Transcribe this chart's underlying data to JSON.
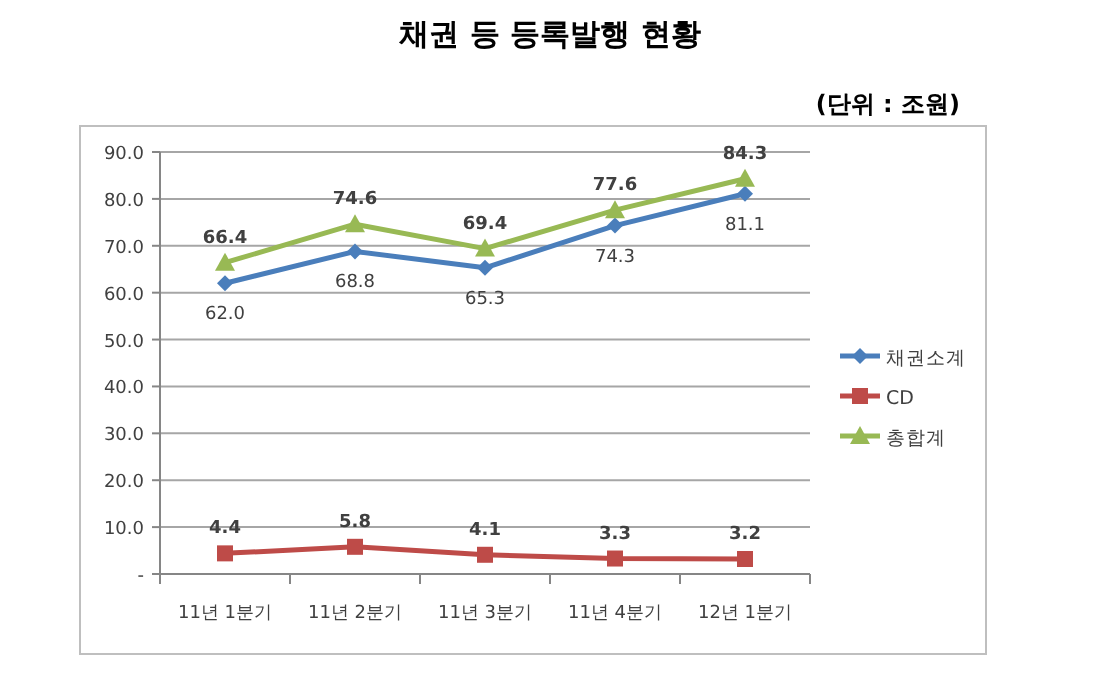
{
  "chart_data": {
    "type": "line",
    "title": "채권 등 등록발행 현황",
    "annotations": [
      "(단위 : 조원)"
    ],
    "categories": [
      "11년 1분기",
      "11년 2분기",
      "11년 3분기",
      "11년 4분기",
      "12년 1분기"
    ],
    "series": [
      {
        "name": "채권소계",
        "color": "#4a7ebb",
        "marker": "diamond",
        "values": [
          62.0,
          68.8,
          65.3,
          74.3,
          81.1
        ],
        "value_labels": [
          "62.0",
          "68.8",
          "65.3",
          "74.3",
          "81.1"
        ]
      },
      {
        "name": "CD",
        "color": "#be4b48",
        "marker": "square",
        "values": [
          4.4,
          5.8,
          4.1,
          3.3,
          3.2
        ],
        "value_labels": [
          "4.4",
          "5.8",
          "4.1",
          "3.3",
          "3.2"
        ]
      },
      {
        "name": "총합계",
        "color": "#98b954",
        "marker": "triangle",
        "values": [
          66.4,
          74.6,
          69.4,
          77.6,
          84.3
        ],
        "value_labels": [
          "66.4",
          "74.6",
          "69.4",
          "77.6",
          "84.3"
        ]
      }
    ],
    "ylim": [
      0,
      90
    ],
    "yticks": [
      {
        "value": 0,
        "label": "-"
      },
      {
        "value": 10,
        "label": "10.0"
      },
      {
        "value": 20,
        "label": "20.0"
      },
      {
        "value": 30,
        "label": "30.0"
      },
      {
        "value": 40,
        "label": "40.0"
      },
      {
        "value": 50,
        "label": "50.0"
      },
      {
        "value": 60,
        "label": "60.0"
      },
      {
        "value": 70,
        "label": "70.0"
      },
      {
        "value": 80,
        "label": "80.0"
      },
      {
        "value": 90,
        "label": "90.0"
      }
    ],
    "grid": "y",
    "legend": "right"
  }
}
